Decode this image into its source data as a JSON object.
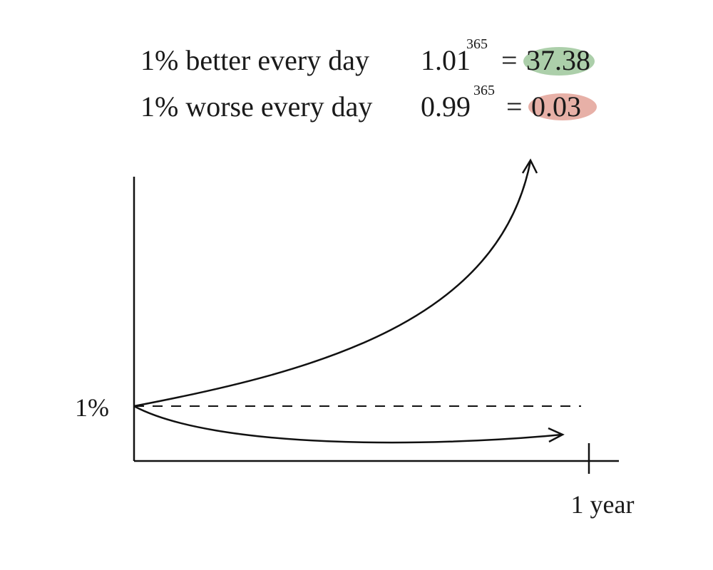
{
  "formulas": [
    {
      "label": "1% better every day",
      "base": "1.01",
      "exponent": "365",
      "equals": "=",
      "result": "37.38"
    },
    {
      "label": "1% worse every day",
      "base": "0.99",
      "exponent": "365",
      "equals": "=",
      "result": "0.03"
    }
  ],
  "graph": {
    "y_label": "1%",
    "x_label": "1 year"
  }
}
